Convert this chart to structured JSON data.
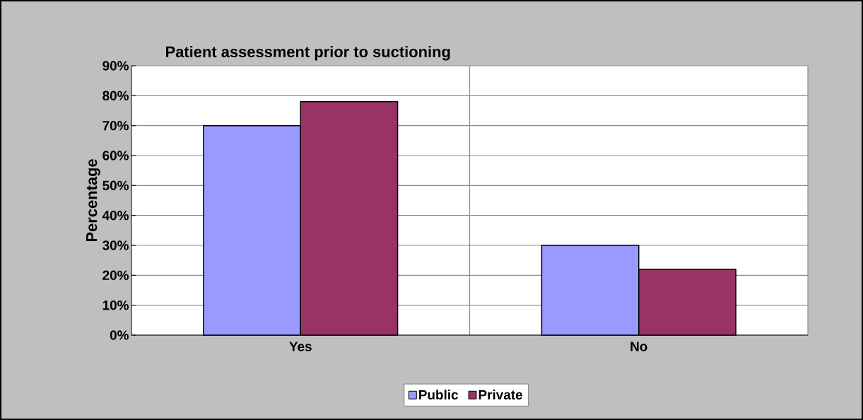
{
  "chart_data": {
    "type": "bar",
    "title": "Patient assessment prior to suctioning",
    "ylabel": "Percentage",
    "categories": [
      "Yes",
      "No"
    ],
    "series": [
      {
        "name": "Public",
        "color": "#9999ff",
        "values": [
          70,
          30
        ]
      },
      {
        "name": "Private",
        "color": "#993366",
        "values": [
          78,
          22
        ]
      }
    ],
    "ylim": [
      0,
      90
    ],
    "yticks": [
      {
        "value": 0,
        "label": "0%"
      },
      {
        "value": 10,
        "label": "10%"
      },
      {
        "value": 20,
        "label": "20%"
      },
      {
        "value": 30,
        "label": "30%"
      },
      {
        "value": 40,
        "label": "40%"
      },
      {
        "value": 50,
        "label": "50%"
      },
      {
        "value": 60,
        "label": "60%"
      },
      {
        "value": 70,
        "label": "70%"
      },
      {
        "value": 80,
        "label": "80%"
      },
      {
        "value": 90,
        "label": "90%"
      }
    ],
    "grid": true,
    "legend": "bottom"
  }
}
